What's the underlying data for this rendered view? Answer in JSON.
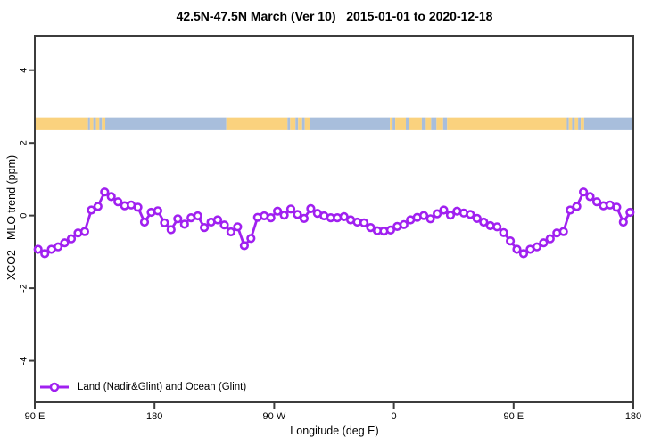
{
  "title": "42.5N-47.5N March (Ver 10)   2015-01-01 to 2020-12-18",
  "axes": {
    "x_label": "Longitude (deg E)",
    "y_label": "XCO2 - MLO trend (ppm)"
  },
  "legend": {
    "label": "Land (Nadir&Glint) and Ocean (Glint)",
    "marker": "open-circle-on-line"
  },
  "colors": {
    "curve": "#A020F0",
    "marker_fill": "#FFFFFF",
    "land": "#FAD27E",
    "ocean": "#A8BEDC",
    "axis": "#3C3C3C",
    "text": "#000000"
  },
  "chart_data": {
    "type": "line",
    "title": "42.5N-47.5N March (Ver 10)   2015-01-01 to 2020-12-18",
    "xlabel": "Longitude (deg E)",
    "ylabel": "XCO2 - MLO trend (ppm)",
    "xlim": [
      90,
      540
    ],
    "ylim": [
      -5.14,
      4.95
    ],
    "grid": false,
    "legend_position": "bottom-left",
    "x_ticks": [
      {
        "value": 90,
        "label": "90 E"
      },
      {
        "value": 180,
        "label": "180"
      },
      {
        "value": 270,
        "label": "90 W"
      },
      {
        "value": 360,
        "label": "0"
      },
      {
        "value": 450,
        "label": "90 E"
      },
      {
        "value": 540,
        "label": "180"
      }
    ],
    "y_ticks": [
      {
        "value": 4,
        "label": "4"
      },
      {
        "value": 2,
        "label": "2"
      },
      {
        "value": 0,
        "label": "0"
      },
      {
        "value": -2,
        "label": "-2"
      },
      {
        "value": -4,
        "label": "-4"
      }
    ],
    "series": [
      {
        "name": "Land (Nadir&Glint) and Ocean (Glint)",
        "x_start": 92.5,
        "x_step": 5,
        "y": [
          -0.93,
          -1.05,
          -0.93,
          -0.86,
          -0.75,
          -0.64,
          -0.48,
          -0.44,
          0.15,
          0.25,
          0.65,
          0.52,
          0.38,
          0.27,
          0.29,
          0.23,
          -0.18,
          0.09,
          0.13,
          -0.2,
          -0.39,
          -0.09,
          -0.24,
          -0.06,
          -0.01,
          -0.33,
          -0.18,
          -0.12,
          -0.26,
          -0.45,
          -0.31,
          -0.83,
          -0.63,
          -0.05,
          -0.01,
          -0.06,
          0.12,
          0.01,
          0.18,
          0.03,
          -0.08,
          0.19,
          0.06,
          -0.01,
          -0.06,
          -0.06,
          -0.03,
          -0.12,
          -0.18,
          -0.2,
          -0.33,
          -0.42,
          -0.43,
          -0.4,
          -0.3,
          -0.25,
          -0.12,
          -0.05,
          0.0,
          -0.09,
          0.05,
          0.15,
          0.01,
          0.12,
          0.07,
          0.03,
          -0.08,
          -0.18,
          -0.28,
          -0.31,
          -0.47,
          -0.7,
          -0.93,
          -1.05,
          -0.93,
          -0.86,
          -0.75,
          -0.64,
          -0.48,
          -0.44,
          0.15,
          0.25,
          0.65,
          0.52,
          0.38,
          0.27,
          0.29,
          0.23,
          -0.18,
          0.09
        ]
      }
    ],
    "surface_band": {
      "description": "surface type strip (land=orange, ocean=blue) vs longitude",
      "y_range": [
        2.35,
        2.7
      ],
      "segments": [
        [
          90,
          130,
          "land"
        ],
        [
          130,
          131.5,
          "ocean"
        ],
        [
          131.5,
          134,
          "land"
        ],
        [
          134,
          136,
          "ocean"
        ],
        [
          136,
          138.5,
          "land"
        ],
        [
          138.5,
          140.5,
          "ocean"
        ],
        [
          140.5,
          143,
          "land"
        ],
        [
          143,
          234,
          "ocean"
        ],
        [
          234,
          280,
          "land"
        ],
        [
          280,
          282,
          "ocean"
        ],
        [
          282,
          286,
          "land"
        ],
        [
          286,
          288,
          "ocean"
        ],
        [
          288,
          291,
          "land"
        ],
        [
          291,
          293,
          "ocean"
        ],
        [
          293,
          297,
          "land"
        ],
        [
          297,
          357,
          "ocean"
        ],
        [
          357,
          359,
          "land"
        ],
        [
          359,
          361,
          "ocean"
        ],
        [
          361,
          369,
          "land"
        ],
        [
          369,
          371,
          "ocean"
        ],
        [
          371,
          381,
          "land"
        ],
        [
          381,
          384,
          "ocean"
        ],
        [
          384,
          388,
          "land"
        ],
        [
          388,
          392,
          "ocean"
        ],
        [
          392,
          397,
          "land"
        ],
        [
          397,
          400,
          "ocean"
        ],
        [
          400,
          490,
          "land"
        ],
        [
          490,
          491.5,
          "ocean"
        ],
        [
          491.5,
          494,
          "land"
        ],
        [
          494,
          496,
          "ocean"
        ],
        [
          496,
          498.5,
          "land"
        ],
        [
          498.5,
          500.5,
          "ocean"
        ],
        [
          500.5,
          503,
          "land"
        ],
        [
          503,
          540,
          "ocean"
        ]
      ]
    }
  }
}
